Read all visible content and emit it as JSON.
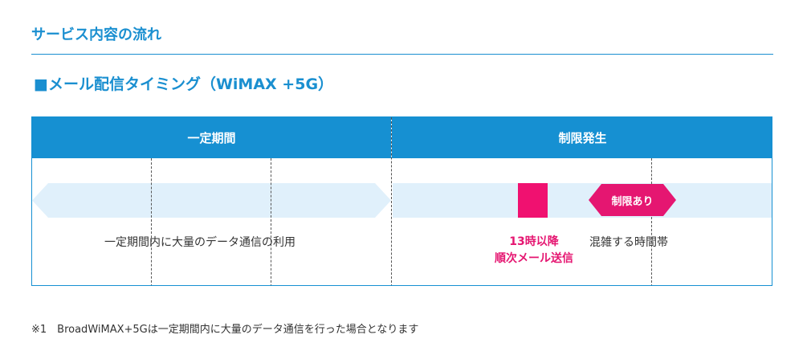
{
  "section_title": "サービス内容の流れ",
  "sub_title": "■メール配信タイミング（WiMAX +5G）",
  "timeline": {
    "left_header": "一定期間",
    "right_header": "制限発生",
    "left_caption": "一定期間内に大量のデータ通信の利用",
    "pink_line1": "13時以降",
    "pink_line2": "順次メール送信",
    "tag_label": "制限あり",
    "busy_caption": "混雑する時間帯"
  },
  "footnote": "※1　BroadWiMAX+5Gは一定期間内に大量のデータ通信を行った場合となります",
  "colors": {
    "accent_blue": "#1690d2",
    "pink": "#e51671",
    "band": "#e0f0fb"
  }
}
